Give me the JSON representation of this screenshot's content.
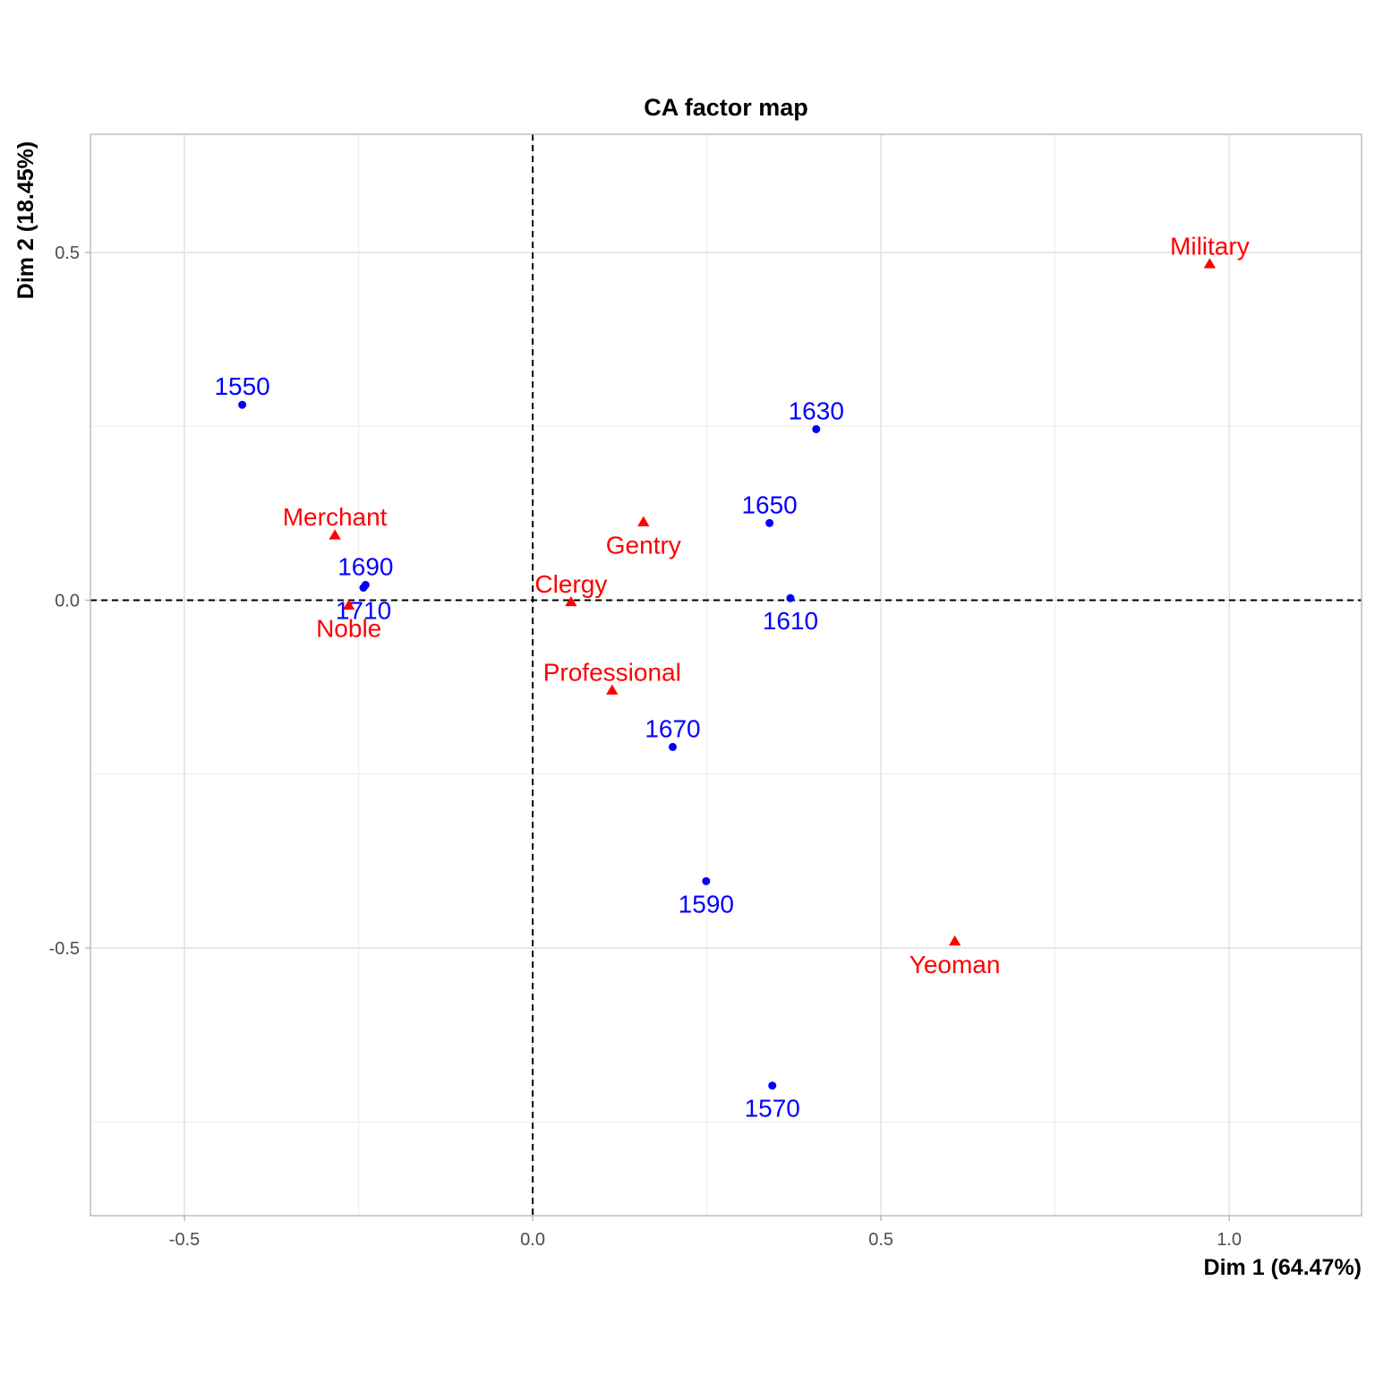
{
  "chart_data": {
    "type": "scatter",
    "title": "CA factor map",
    "xlabel": "Dim 1 (64.47%)",
    "ylabel": "Dim 2 (18.45%)",
    "xlim": [
      -0.635,
      1.19
    ],
    "ylim": [
      -0.885,
      0.67
    ],
    "xticks": [
      -0.5,
      0.0,
      0.5,
      1.0
    ],
    "xtick_labels": [
      "-0.5",
      "0.0",
      "0.5",
      "1.0"
    ],
    "yticks": [
      -0.5,
      0.0,
      0.5
    ],
    "ytick_labels": [
      "-0.5",
      "0.0",
      "0.5"
    ],
    "grid": true,
    "reference_lines": {
      "x": 0,
      "y": 0,
      "style": "dashed"
    },
    "series": [
      {
        "name": "rows",
        "color": "#0000ff",
        "marker": "circle",
        "points": [
          {
            "label": "1550",
            "x": -0.417,
            "y": 0.281,
            "label_pos": "above"
          },
          {
            "label": "1570",
            "x": 0.344,
            "y": -0.698,
            "label_pos": "below"
          },
          {
            "label": "1590",
            "x": 0.249,
            "y": -0.404,
            "label_pos": "below"
          },
          {
            "label": "1610",
            "x": 0.37,
            "y": 0.003,
            "label_pos": "below"
          },
          {
            "label": "1630",
            "x": 0.407,
            "y": 0.246,
            "label_pos": "above"
          },
          {
            "label": "1650",
            "x": 0.34,
            "y": 0.111,
            "label_pos": "above"
          },
          {
            "label": "1670",
            "x": 0.201,
            "y": -0.211,
            "label_pos": "above"
          },
          {
            "label": "1690",
            "x": -0.24,
            "y": 0.022,
            "label_pos": "above"
          },
          {
            "label": "1710",
            "x": -0.243,
            "y": 0.018,
            "label_pos": "below"
          }
        ]
      },
      {
        "name": "columns",
        "color": "#ff0000",
        "marker": "triangle",
        "points": [
          {
            "label": "Military",
            "x": 0.972,
            "y": 0.483,
            "label_pos": "above"
          },
          {
            "label": "Merchant",
            "x": -0.284,
            "y": 0.093,
            "label_pos": "above"
          },
          {
            "label": "Gentry",
            "x": 0.159,
            "y": 0.112,
            "label_pos": "below"
          },
          {
            "label": "Clergy",
            "x": 0.055,
            "y": -0.003,
            "label_pos": "above"
          },
          {
            "label": "Noble",
            "x": -0.264,
            "y": -0.008,
            "label_pos": "below"
          },
          {
            "label": "Professional",
            "x": 0.114,
            "y": -0.13,
            "label_pos": "above"
          },
          {
            "label": "Yeoman",
            "x": 0.606,
            "y": -0.491,
            "label_pos": "below"
          }
        ]
      }
    ]
  }
}
